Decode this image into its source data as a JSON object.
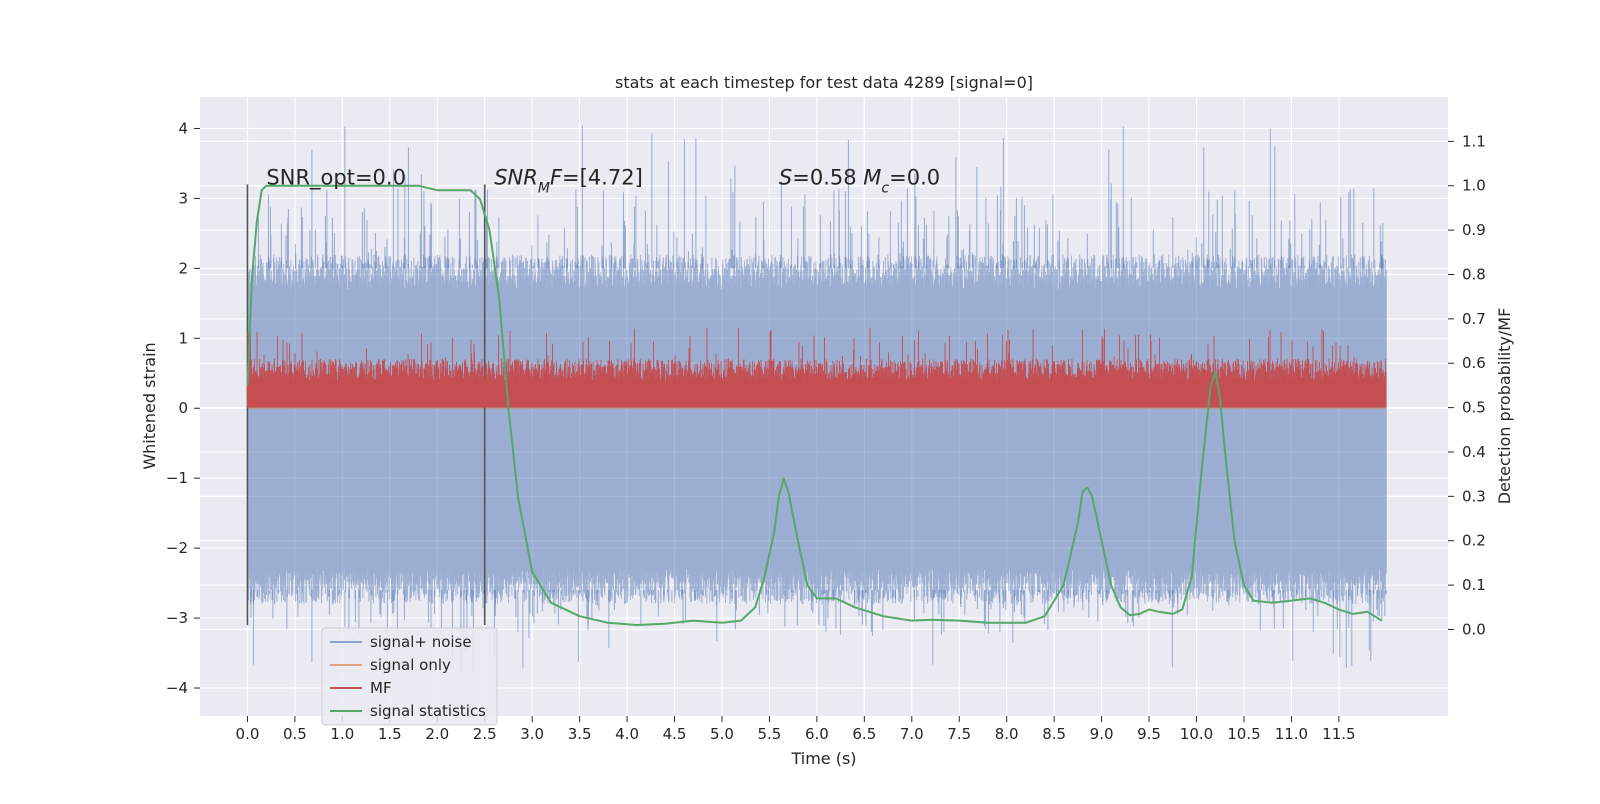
{
  "chart_data": {
    "type": "line",
    "title": "stats at each timestep for test data 4289 [signal=0]",
    "xlabel": "Time (s)",
    "ylabel": "Whitened strain",
    "y2label": "Detection probability/MF",
    "xlim": [
      -0.5,
      12.65
    ],
    "ylim": [
      -4.4,
      4.45
    ],
    "y2lim": [
      -0.195,
      1.2
    ],
    "x_ticks": [
      0.0,
      0.5,
      1.0,
      1.5,
      2.0,
      2.5,
      3.0,
      3.5,
      4.0,
      4.5,
      5.0,
      5.5,
      6.0,
      6.5,
      7.0,
      7.5,
      8.0,
      8.5,
      9.0,
      9.5,
      10.0,
      10.5,
      11.0,
      11.5
    ],
    "x_tick_labels": [
      "0.0",
      "0.5",
      "1.0",
      "1.5",
      "2.0",
      "2.5",
      "3.0",
      "3.5",
      "4.0",
      "4.5",
      "5.0",
      "5.5",
      "6.0",
      "6.5",
      "7.0",
      "7.5",
      "8.0",
      "8.5",
      "9.0",
      "9.5",
      "10.0",
      "10.5",
      "11.0",
      "11.5"
    ],
    "y_ticks": [
      4,
      3,
      2,
      1,
      0,
      -1,
      -2,
      -3,
      -4
    ],
    "y_tick_labels": [
      "4",
      "3",
      "2",
      "1",
      "0",
      "−1",
      "−2",
      "−3",
      "−4"
    ],
    "y2_ticks": [
      1.1,
      1.0,
      0.9,
      0.8,
      0.7,
      0.6,
      0.5,
      0.4,
      0.3,
      0.2,
      0.1,
      0.0
    ],
    "y2_tick_labels": [
      "1.1",
      "1.0",
      "0.9",
      "0.8",
      "0.7",
      "0.6",
      "0.5",
      "0.4",
      "0.3",
      "0.2",
      "0.1",
      "0.0"
    ],
    "grid": true,
    "legend_position": "lower-left",
    "series": [
      {
        "name": "signal+ noise",
        "axis": "left",
        "color": "#4c72b0",
        "opacity": 0.55,
        "x_range": [
          0.0,
          12.0
        ],
        "envelope": [
          -2.6,
          2.0
        ],
        "peaks_to": [
          -3.8,
          4.1
        ]
      },
      {
        "name": "signal only",
        "axis": "left",
        "color": "#dd8452",
        "x_range": [
          0.0,
          12.0
        ],
        "values": [
          0,
          0
        ]
      },
      {
        "name": "MF",
        "axis": "right",
        "color": "#c44e52",
        "x_range": [
          0.0,
          12.0
        ],
        "baseline": 0.5,
        "band": [
          0.5,
          0.61
        ],
        "peaks_to": 0.68
      },
      {
        "name": "signal statistics",
        "axis": "right",
        "color": "#55a868",
        "x": [
          0.0,
          0.05,
          0.1,
          0.15,
          0.2,
          0.3,
          0.5,
          1.0,
          1.5,
          1.8,
          2.0,
          2.2,
          2.35,
          2.45,
          2.55,
          2.65,
          2.75,
          2.85,
          3.0,
          3.2,
          3.5,
          3.8,
          4.1,
          4.4,
          4.7,
          5.0,
          5.2,
          5.35,
          5.45,
          5.55,
          5.6,
          5.65,
          5.7,
          5.8,
          5.9,
          6.0,
          6.2,
          6.4,
          6.7,
          7.0,
          7.2,
          7.5,
          7.8,
          8.0,
          8.2,
          8.4,
          8.6,
          8.75,
          8.8,
          8.85,
          8.9,
          9.0,
          9.1,
          9.2,
          9.3,
          9.4,
          9.5,
          9.6,
          9.75,
          9.85,
          9.95,
          10.05,
          10.15,
          10.2,
          10.25,
          10.3,
          10.4,
          10.5,
          10.6,
          10.8,
          11.0,
          11.2,
          11.35,
          11.5,
          11.65,
          11.8,
          11.95
        ],
        "values": [
          0.55,
          0.8,
          0.92,
          0.99,
          1.0,
          1.0,
          1.0,
          1.0,
          1.0,
          1.0,
          0.99,
          0.99,
          0.99,
          0.97,
          0.9,
          0.75,
          0.5,
          0.3,
          0.13,
          0.06,
          0.03,
          0.015,
          0.01,
          0.013,
          0.02,
          0.015,
          0.02,
          0.05,
          0.12,
          0.22,
          0.3,
          0.34,
          0.31,
          0.2,
          0.1,
          0.07,
          0.07,
          0.05,
          0.03,
          0.02,
          0.022,
          0.02,
          0.015,
          0.015,
          0.015,
          0.03,
          0.1,
          0.24,
          0.31,
          0.32,
          0.3,
          0.2,
          0.1,
          0.05,
          0.032,
          0.035,
          0.045,
          0.04,
          0.035,
          0.045,
          0.12,
          0.35,
          0.55,
          0.58,
          0.52,
          0.4,
          0.2,
          0.1,
          0.065,
          0.06,
          0.065,
          0.07,
          0.06,
          0.045,
          0.035,
          0.04,
          0.02
        ]
      }
    ],
    "vlines": [
      {
        "x": 0.0,
        "ymin": -3.1,
        "ymax": 3.2
      },
      {
        "x": 2.5,
        "ymin": -3.1,
        "ymax": 3.2
      }
    ],
    "annotations": [
      {
        "id": "snr-opt",
        "x": 0.2,
        "y": 3.2,
        "parts": [
          {
            "text": "SNR_opt=0.0"
          }
        ]
      },
      {
        "id": "snr-mf",
        "x": 2.6,
        "y": 3.2,
        "parts": [
          {
            "text": "SNR",
            "italic": true
          },
          {
            "text": "M",
            "italic": true,
            "sub": true
          },
          {
            "text": "F",
            "italic": true
          },
          {
            "text": "=[4.72]"
          }
        ]
      },
      {
        "id": "stat-s",
        "x": 5.6,
        "y": 3.2,
        "parts": [
          {
            "text": "S",
            "italic": true
          },
          {
            "text": "=0.58   "
          },
          {
            "text": "M",
            "italic": true
          },
          {
            "text": "c",
            "italic": true,
            "sub": true
          },
          {
            "text": "=0.0"
          }
        ]
      }
    ]
  }
}
